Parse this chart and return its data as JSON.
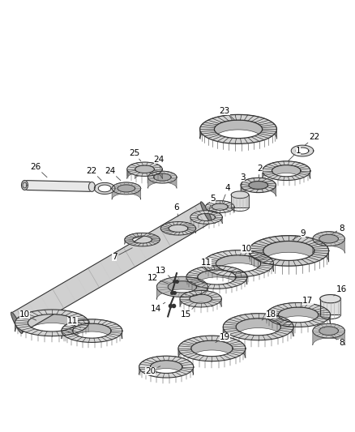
{
  "bg_color": "#ffffff",
  "fig_width": 4.38,
  "fig_height": 5.33,
  "dpi": 100,
  "label_fontsize": 7.5,
  "line_color": "#222222",
  "text_color": "#000000",
  "gear_face": "#d8d8d8",
  "gear_edge": "#222222",
  "gear_dark": "#888888",
  "shaft_light": "#cccccc",
  "shaft_mid": "#aaaaaa",
  "shaft_dark": "#666666"
}
